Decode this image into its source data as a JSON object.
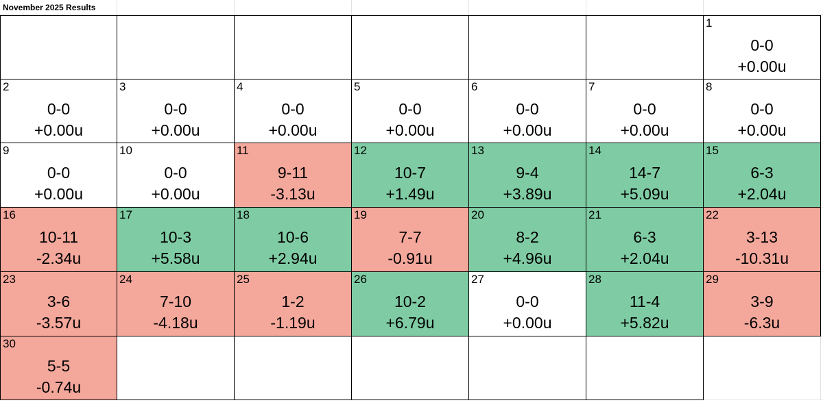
{
  "sheet": {
    "title": "November 2025 Results"
  },
  "colors": {
    "win": "#7fcca4",
    "loss": "#f4a79b",
    "neutral": "#ffffff",
    "gridline": "#e2e2e2",
    "border": "#000000"
  },
  "calendar": {
    "weeks": [
      [
        {
          "empty": true
        },
        {
          "empty": true
        },
        {
          "empty": true
        },
        {
          "empty": true
        },
        {
          "empty": true
        },
        {
          "empty": true
        },
        {
          "day": "1",
          "record": "0-0",
          "units": "+0.00u",
          "status": "neutral"
        }
      ],
      [
        {
          "day": "2",
          "record": "0-0",
          "units": "+0.00u",
          "status": "neutral"
        },
        {
          "day": "3",
          "record": "0-0",
          "units": "+0.00u",
          "status": "neutral"
        },
        {
          "day": "4",
          "record": "0-0",
          "units": "+0.00u",
          "status": "neutral"
        },
        {
          "day": "5",
          "record": "0-0",
          "units": "+0.00u",
          "status": "neutral"
        },
        {
          "day": "6",
          "record": "0-0",
          "units": "+0.00u",
          "status": "neutral"
        },
        {
          "day": "7",
          "record": "0-0",
          "units": "+0.00u",
          "status": "neutral"
        },
        {
          "day": "8",
          "record": "0-0",
          "units": "+0.00u",
          "status": "neutral"
        }
      ],
      [
        {
          "day": "9",
          "record": "0-0",
          "units": "+0.00u",
          "status": "neutral"
        },
        {
          "day": "10",
          "record": "0-0",
          "units": "+0.00u",
          "status": "neutral"
        },
        {
          "day": "11",
          "record": "9-11",
          "units": "-3.13u",
          "status": "loss"
        },
        {
          "day": "12",
          "record": "10-7",
          "units": "+1.49u",
          "status": "win"
        },
        {
          "day": "13",
          "record": "9-4",
          "units": "+3.89u",
          "status": "win"
        },
        {
          "day": "14",
          "record": "14-7",
          "units": "+5.09u",
          "status": "win"
        },
        {
          "day": "15",
          "record": "6-3",
          "units": "+2.04u",
          "status": "win"
        }
      ],
      [
        {
          "day": "16",
          "record": "10-11",
          "units": "-2.34u",
          "status": "loss"
        },
        {
          "day": "17",
          "record": "10-3",
          "units": "+5.58u",
          "status": "win"
        },
        {
          "day": "18",
          "record": "10-6",
          "units": "+2.94u",
          "status": "win"
        },
        {
          "day": "19",
          "record": "7-7",
          "units": "-0.91u",
          "status": "loss"
        },
        {
          "day": "20",
          "record": "8-2",
          "units": "+4.96u",
          "status": "win"
        },
        {
          "day": "21",
          "record": "6-3",
          "units": "+2.04u",
          "status": "win"
        },
        {
          "day": "22",
          "record": "3-13",
          "units": "-10.31u",
          "status": "loss"
        }
      ],
      [
        {
          "day": "23",
          "record": "3-6",
          "units": "-3.57u",
          "status": "loss"
        },
        {
          "day": "24",
          "record": "7-10",
          "units": "-4.18u",
          "status": "loss"
        },
        {
          "day": "25",
          "record": "1-2",
          "units": "-1.19u",
          "status": "loss"
        },
        {
          "day": "26",
          "record": "10-2",
          "units": "+6.79u",
          "status": "win"
        },
        {
          "day": "27",
          "record": "0-0",
          "units": "+0.00u",
          "status": "neutral"
        },
        {
          "day": "28",
          "record": "11-4",
          "units": "+5.82u",
          "status": "win"
        },
        {
          "day": "29",
          "record": "3-9",
          "units": "-6.3u",
          "status": "loss"
        }
      ],
      [
        {
          "day": "30",
          "record": "5-5",
          "units": "-0.74u",
          "status": "loss"
        },
        {
          "empty": true
        },
        {
          "empty": true
        },
        {
          "empty": true
        },
        {
          "empty": true
        },
        {
          "empty": true
        },
        {
          "gap": true
        }
      ]
    ]
  }
}
